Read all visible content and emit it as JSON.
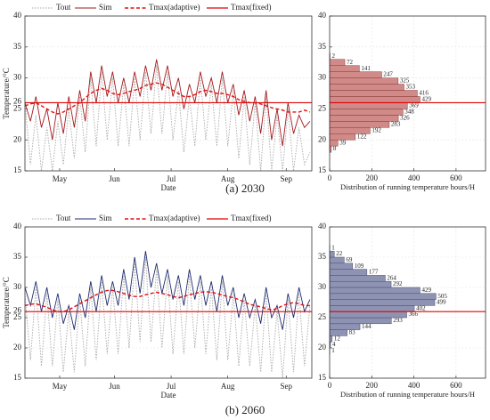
{
  "chart_data": [
    {
      "type": "line",
      "caption": "(a) 2030",
      "xlabel": "Date",
      "ylabel": "Temperature/°C",
      "x": [
        117,
        120,
        123,
        126,
        129,
        132,
        135,
        138,
        141,
        144,
        147,
        150,
        153,
        156,
        159,
        162,
        165,
        168,
        171,
        174,
        177,
        180,
        183,
        186,
        189,
        192,
        195,
        198,
        201,
        204,
        207,
        210,
        213,
        216,
        219,
        222,
        225,
        228,
        231,
        234,
        237,
        240,
        243,
        246,
        249,
        252,
        255,
        258,
        261,
        264,
        267,
        270,
        273
      ],
      "xlim": [
        117,
        274
      ],
      "xticks": [
        {
          "value": 136,
          "label": "May"
        },
        {
          "value": 166,
          "label": "Jun"
        },
        {
          "value": 197,
          "label": "Jul"
        },
        {
          "value": 228,
          "label": "Aug"
        },
        {
          "value": 260,
          "label": "Sep"
        }
      ],
      "ylim": [
        15,
        40
      ],
      "yticks": [
        15,
        20,
        25,
        30,
        35,
        40
      ],
      "grid": true,
      "series": [
        {
          "name": "Tout",
          "color": "#a8a8a8",
          "style": "dotted",
          "values": [
            26,
            16,
            24,
            15,
            22,
            15,
            23,
            16,
            25,
            17,
            27,
            18,
            30,
            19,
            31,
            20,
            30,
            19,
            29,
            19,
            30,
            20,
            31,
            21,
            32,
            21,
            31,
            20,
            28,
            18,
            27,
            19,
            30,
            20,
            29,
            19,
            30,
            19,
            28,
            17,
            27,
            16,
            26,
            15,
            27,
            15,
            24,
            15,
            25,
            15,
            22,
            16,
            18
          ]
        },
        {
          "name": "Sim",
          "color": "#a3191c",
          "style": "solid",
          "values": [
            26,
            23,
            27,
            22,
            25,
            20,
            26,
            21,
            27,
            22,
            28,
            23,
            31,
            26,
            32,
            27,
            31,
            26,
            30,
            26,
            31,
            27,
            32,
            28,
            33,
            28,
            32,
            27,
            30,
            25,
            29,
            26,
            31,
            27,
            30,
            26,
            31,
            26,
            29,
            24,
            28,
            23,
            27,
            21,
            28,
            20,
            25,
            19,
            26,
            21,
            24,
            22,
            23
          ]
        },
        {
          "name": "Tmax(adaptive)",
          "color": "#e01010",
          "style": "dashed",
          "values": [
            25.5,
            25.8,
            26,
            25.5,
            25,
            24.5,
            24.2,
            24.5,
            25,
            25.5,
            26,
            26.8,
            27.5,
            28,
            28.3,
            28,
            27.5,
            27.3,
            27.5,
            27.8,
            28,
            28.3,
            28.8,
            29,
            29.2,
            29,
            28.5,
            28,
            27.5,
            27,
            27,
            27.3,
            27.8,
            28,
            27.8,
            27.5,
            27.5,
            27.3,
            27,
            26.5,
            26.2,
            26,
            26,
            25.8,
            25.5,
            25.2,
            25,
            24.8,
            24.5,
            24.5,
            24.5,
            24.8,
            24.5
          ]
        }
      ],
      "reference": {
        "name": "Tmax(fixed)",
        "value": 26,
        "color": "#e00000"
      }
    },
    {
      "type": "histogram",
      "orientation": "horizontal",
      "xlabel": "Distribution of running temperature hours/H",
      "bins": [
        18,
        19,
        20,
        21,
        22,
        23,
        24,
        25,
        26,
        27,
        28,
        29,
        30,
        31,
        32,
        33,
        34
      ],
      "values": [
        8,
        39,
        122,
        192,
        283,
        326,
        348,
        369,
        429,
        416,
        353,
        325,
        247,
        141,
        72,
        2
      ],
      "color": "#d08a88",
      "edge_color": "#8c3a3a",
      "xlim": [
        0,
        740
      ],
      "xticks": [
        0,
        200,
        400,
        600
      ],
      "ylim": [
        15,
        40
      ],
      "yticks": [
        15,
        20,
        25,
        30,
        35,
        40
      ],
      "grid": true,
      "reference": {
        "value": 26,
        "color": "#e00000"
      }
    },
    {
      "type": "line",
      "caption": "(b) 2060",
      "xlabel": "Date",
      "ylabel": "Temperature/°C",
      "x": [
        117,
        120,
        123,
        126,
        129,
        132,
        135,
        138,
        141,
        144,
        147,
        150,
        153,
        156,
        159,
        162,
        165,
        168,
        171,
        174,
        177,
        180,
        183,
        186,
        189,
        192,
        195,
        198,
        201,
        204,
        207,
        210,
        213,
        216,
        219,
        222,
        225,
        228,
        231,
        234,
        237,
        240,
        243,
        246,
        249,
        252,
        255,
        258,
        261,
        264,
        267,
        270,
        273
      ],
      "xlim": [
        117,
        274
      ],
      "xticks": [
        {
          "value": 136,
          "label": "May"
        },
        {
          "value": 166,
          "label": "Jun"
        },
        {
          "value": 197,
          "label": "Jul"
        },
        {
          "value": 228,
          "label": "Aug"
        },
        {
          "value": 260,
          "label": "Sep"
        }
      ],
      "ylim": [
        15,
        40
      ],
      "yticks": [
        15,
        20,
        25,
        30,
        35,
        40
      ],
      "grid": true,
      "series": [
        {
          "name": "Tout",
          "color": "#a8a8a8",
          "style": "dotted",
          "values": [
            29,
            18,
            30,
            17,
            29,
            17,
            28,
            16,
            26,
            16,
            28,
            17,
            30,
            18,
            31,
            19,
            30,
            19,
            32,
            20,
            34,
            21,
            35,
            21,
            33,
            20,
            32,
            19,
            31,
            19,
            32,
            20,
            31,
            19,
            30,
            18,
            31,
            18,
            29,
            17,
            28,
            17,
            27,
            16,
            29,
            16,
            26,
            15,
            28,
            16,
            29,
            17,
            27
          ]
        },
        {
          "name": "Sim",
          "color": "#1f2b6e",
          "style": "solid",
          "values": [
            30,
            27,
            31,
            26,
            30,
            25,
            29,
            24,
            27,
            23,
            29,
            25,
            31,
            26,
            32,
            27,
            31,
            27,
            33,
            28,
            35,
            29,
            36,
            30,
            34,
            29,
            33,
            28,
            32,
            27,
            33,
            28,
            32,
            27,
            31,
            26,
            32,
            27,
            30,
            25,
            29,
            25,
            28,
            24,
            30,
            25,
            27,
            23,
            29,
            25,
            30,
            26,
            28
          ]
        },
        {
          "name": "Tmax(adaptive)",
          "color": "#e01010",
          "style": "dashed",
          "values": [
            27,
            27.2,
            27.3,
            27,
            26.7,
            26.3,
            26,
            26,
            26.3,
            26.8,
            27.3,
            27.8,
            28.3,
            28.8,
            29.2,
            29.5,
            29.5,
            29.3,
            29,
            28.7,
            28.5,
            28.5,
            28.8,
            29,
            29.2,
            29,
            28.8,
            28.5,
            28.3,
            28.5,
            28.8,
            29,
            29.2,
            29.3,
            29.2,
            29,
            28.7,
            28.5,
            28.3,
            28,
            27.6,
            27.2,
            27,
            26.8,
            26.5,
            26.3,
            26.5,
            27,
            27.3,
            27.5,
            27.3,
            27,
            27
          ]
        }
      ],
      "reference": {
        "name": "Tmax(fixed)",
        "value": 26,
        "color": "#e00000"
      }
    },
    {
      "type": "histogram",
      "orientation": "horizontal",
      "xlabel": "Distribution of running temperature hours/H",
      "bins": [
        19,
        20,
        21,
        22,
        23,
        24,
        25,
        26,
        27,
        28,
        29,
        30,
        31,
        32,
        33,
        34,
        35,
        36,
        37
      ],
      "values": [
        1,
        4,
        12,
        83,
        144,
        293,
        366,
        402,
        499,
        505,
        429,
        292,
        264,
        177,
        109,
        69,
        22,
        1
      ],
      "color": "#8e93b4",
      "edge_color": "#4a4f70",
      "xlim": [
        0,
        740
      ],
      "xticks": [
        0,
        200,
        400,
        600
      ],
      "ylim": [
        15,
        40
      ],
      "yticks": [
        15,
        20,
        25,
        30,
        35,
        40
      ],
      "grid": true,
      "reference": {
        "value": 26,
        "color": "#e00000"
      }
    }
  ]
}
